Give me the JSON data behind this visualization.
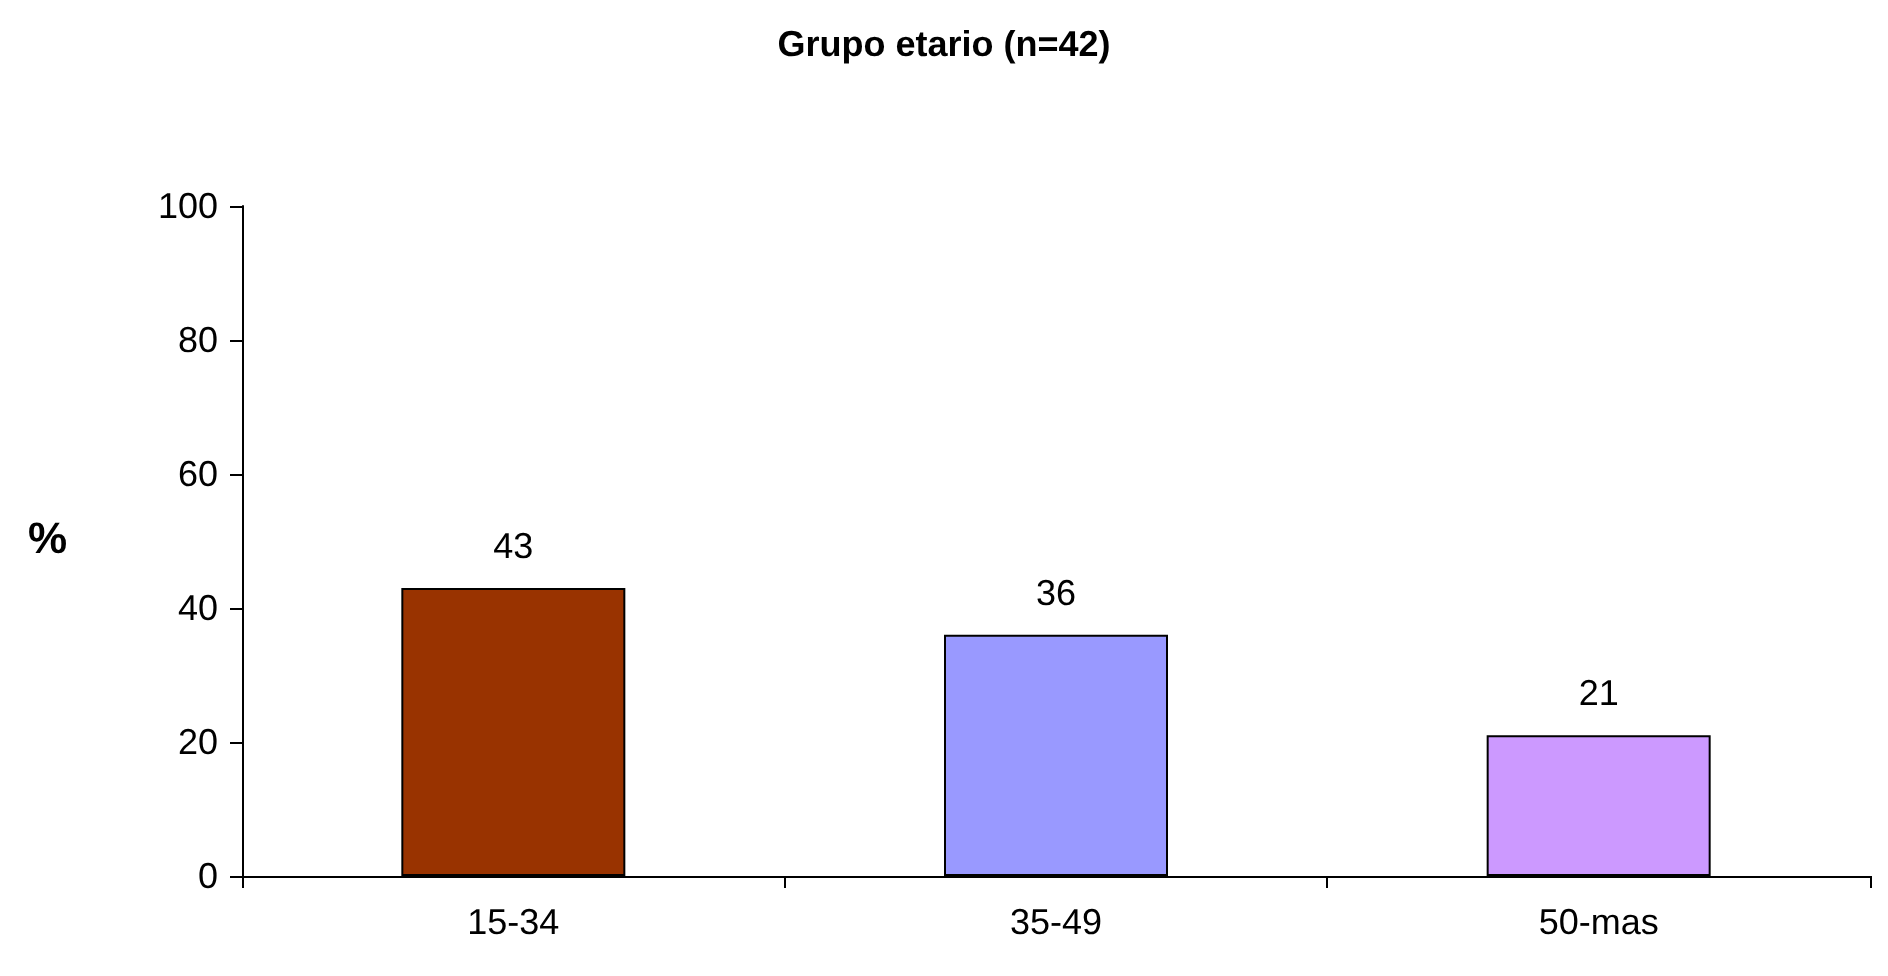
{
  "chart_data": {
    "type": "bar",
    "title": "Grupo etario (n=42)",
    "ylabel": "%",
    "categories": [
      "15-34",
      "35-49",
      "50-mas"
    ],
    "values": [
      43,
      36,
      21
    ],
    "colors": [
      "#993300",
      "#9999ff",
      "#cc99ff"
    ],
    "ylim": [
      0,
      100
    ],
    "yticks": [
      0,
      20,
      40,
      60,
      80,
      100
    ],
    "data_labels": true
  }
}
